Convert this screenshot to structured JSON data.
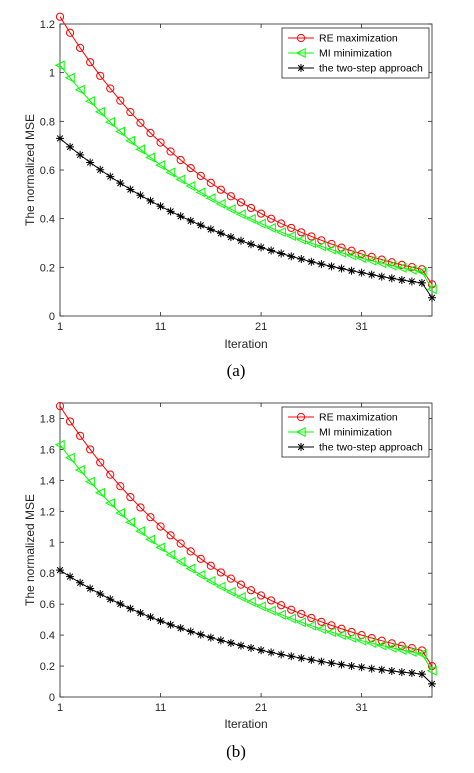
{
  "chart_data": [
    {
      "type": "line",
      "caption": "(a)",
      "xlabel": "Iteration",
      "ylabel": "The normalized MSE",
      "xlim": [
        1,
        38
      ],
      "ylim": [
        0,
        1.2
      ],
      "xticks": [
        1,
        11,
        21,
        31
      ],
      "yticks": [
        0,
        0.2,
        0.4,
        0.6,
        0.8,
        1,
        1.2
      ],
      "grid": false,
      "legend_position": "top-right",
      "x": [
        1,
        2,
        3,
        4,
        5,
        6,
        7,
        8,
        9,
        10,
        11,
        12,
        13,
        14,
        15,
        16,
        17,
        18,
        19,
        20,
        21,
        22,
        23,
        24,
        25,
        26,
        27,
        28,
        29,
        30,
        31,
        32,
        33,
        34,
        35,
        36,
        37,
        38
      ],
      "series": [
        {
          "name": "RE maximization",
          "color": "#ff0000",
          "marker": "circle",
          "values": [
            1.23,
            1.164,
            1.102,
            1.043,
            0.987,
            0.935,
            0.885,
            0.838,
            0.794,
            0.752,
            0.713,
            0.676,
            0.641,
            0.608,
            0.576,
            0.547,
            0.519,
            0.492,
            0.467,
            0.444,
            0.421,
            0.4,
            0.38,
            0.362,
            0.344,
            0.327,
            0.311,
            0.296,
            0.281,
            0.268,
            0.255,
            0.243,
            0.232,
            0.221,
            0.21,
            0.201,
            0.192,
            0.13
          ]
        },
        {
          "name": "MI minimization",
          "color": "#00ff00",
          "marker": "triangle-left",
          "values": [
            1.03,
            0.979,
            0.93,
            0.883,
            0.839,
            0.797,
            0.758,
            0.72,
            0.685,
            0.652,
            0.62,
            0.59,
            0.561,
            0.534,
            0.508,
            0.484,
            0.461,
            0.439,
            0.418,
            0.399,
            0.38,
            0.362,
            0.345,
            0.329,
            0.314,
            0.299,
            0.286,
            0.273,
            0.26,
            0.249,
            0.238,
            0.227,
            0.217,
            0.207,
            0.198,
            0.19,
            0.182,
            0.11
          ]
        },
        {
          "name": "the two-step approach",
          "color": "#000000",
          "marker": "star",
          "values": [
            0.73,
            0.695,
            0.662,
            0.631,
            0.601,
            0.573,
            0.546,
            0.52,
            0.496,
            0.473,
            0.451,
            0.43,
            0.41,
            0.391,
            0.373,
            0.356,
            0.34,
            0.324,
            0.309,
            0.295,
            0.282,
            0.269,
            0.257,
            0.245,
            0.234,
            0.223,
            0.213,
            0.204,
            0.195,
            0.186,
            0.178,
            0.17,
            0.162,
            0.155,
            0.148,
            0.142,
            0.136,
            0.075
          ]
        }
      ]
    },
    {
      "type": "line",
      "caption": "(b)",
      "xlabel": "Iteration",
      "ylabel": "The normalized MSE",
      "xlim": [
        1,
        38
      ],
      "ylim": [
        0,
        1.9
      ],
      "xticks": [
        1,
        11,
        21,
        31
      ],
      "yticks": [
        0,
        0.2,
        0.4,
        0.6,
        0.8,
        1,
        1.2,
        1.4,
        1.6,
        1.8
      ],
      "grid": false,
      "legend_position": "top-right",
      "x": [
        1,
        2,
        3,
        4,
        5,
        6,
        7,
        8,
        9,
        10,
        11,
        12,
        13,
        14,
        15,
        16,
        17,
        18,
        19,
        20,
        21,
        22,
        23,
        24,
        25,
        26,
        27,
        28,
        29,
        30,
        31,
        32,
        33,
        34,
        35,
        36,
        37,
        38
      ],
      "series": [
        {
          "name": "RE maximization",
          "color": "#ff0000",
          "marker": "circle",
          "values": [
            1.88,
            1.781,
            1.688,
            1.6,
            1.516,
            1.437,
            1.362,
            1.292,
            1.225,
            1.162,
            1.102,
            1.045,
            0.992,
            0.941,
            0.893,
            0.848,
            0.805,
            0.765,
            0.726,
            0.69,
            0.656,
            0.624,
            0.593,
            0.564,
            0.537,
            0.511,
            0.486,
            0.463,
            0.441,
            0.42,
            0.4,
            0.381,
            0.364,
            0.347,
            0.331,
            0.316,
            0.301,
            0.2
          ]
        },
        {
          "name": "MI minimization",
          "color": "#00ff00",
          "marker": "triangle-left",
          "values": [
            1.63,
            1.546,
            1.467,
            1.391,
            1.32,
            1.253,
            1.189,
            1.129,
            1.072,
            1.018,
            0.967,
            0.919,
            0.873,
            0.83,
            0.789,
            0.75,
            0.713,
            0.679,
            0.646,
            0.615,
            0.586,
            0.558,
            0.532,
            0.507,
            0.483,
            0.461,
            0.439,
            0.419,
            0.4,
            0.382,
            0.364,
            0.348,
            0.333,
            0.318,
            0.304,
            0.291,
            0.278,
            0.17
          ]
        },
        {
          "name": "the two-step approach",
          "color": "#000000",
          "marker": "star",
          "values": [
            0.82,
            0.778,
            0.738,
            0.701,
            0.666,
            0.632,
            0.601,
            0.571,
            0.543,
            0.516,
            0.491,
            0.467,
            0.445,
            0.423,
            0.403,
            0.384,
            0.366,
            0.349,
            0.332,
            0.317,
            0.302,
            0.288,
            0.275,
            0.263,
            0.251,
            0.24,
            0.229,
            0.219,
            0.209,
            0.2,
            0.192,
            0.183,
            0.176,
            0.168,
            0.161,
            0.155,
            0.148,
            0.085
          ]
        }
      ]
    }
  ]
}
